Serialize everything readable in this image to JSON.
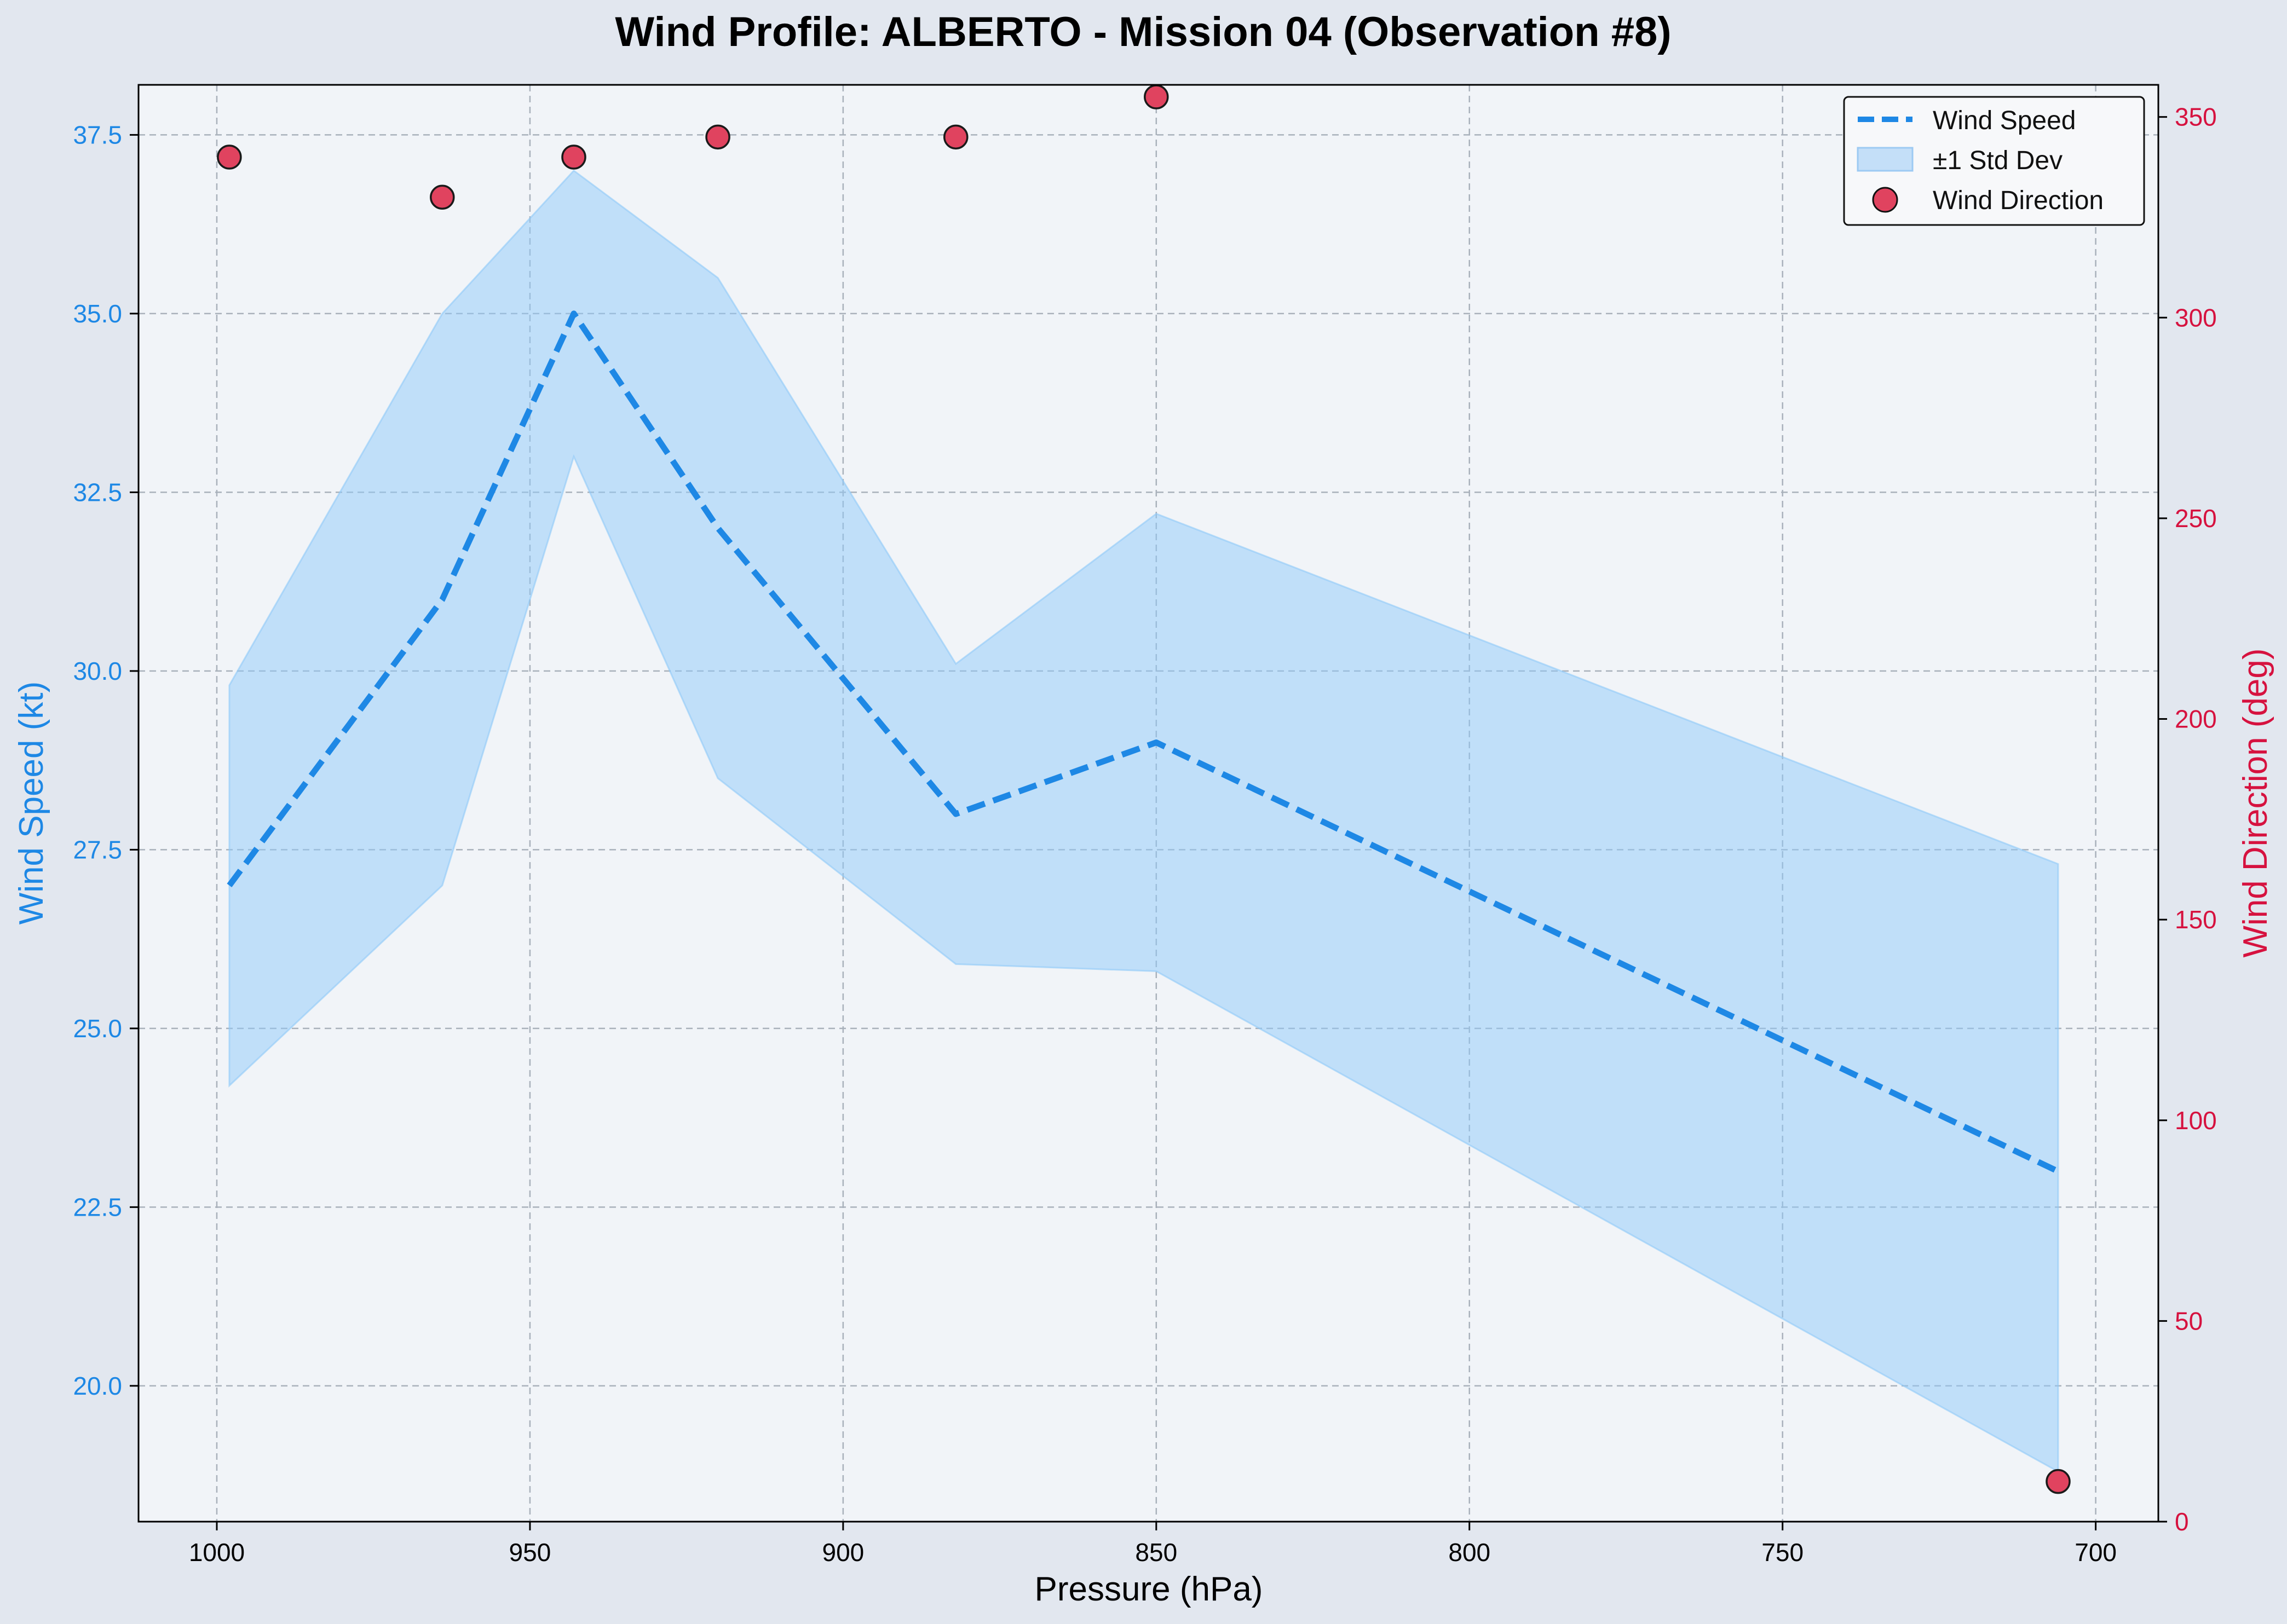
{
  "chart_data": {
    "type": "line",
    "title": "Wind Profile: ALBERTO - Mission 04 (Observation #8)",
    "xlabel": "Pressure (hPa)",
    "ylabel": "Wind Speed (kt)",
    "y2label": "Wind Direction (deg)",
    "x_inverted": true,
    "xlim": [
      1012.5,
      690
    ],
    "ylim": [
      18.1,
      38.2
    ],
    "y2lim": [
      0,
      358
    ],
    "xticks": [
      1000,
      950,
      900,
      850,
      800,
      750,
      700
    ],
    "yticks": [
      20.0,
      22.5,
      25.0,
      27.5,
      30.0,
      32.5,
      35.0,
      37.5
    ],
    "y2ticks": [
      0,
      50,
      100,
      150,
      200,
      250,
      300,
      350
    ],
    "grid": true,
    "legend_position": "top-right",
    "x": [
      998,
      964,
      943,
      920,
      882,
      850,
      706
    ],
    "series": [
      {
        "name": "Wind Speed",
        "axis": "left",
        "style": "dashed line",
        "color": "#1e88e5",
        "values": [
          27.0,
          31.0,
          35.0,
          32.0,
          28.0,
          29.0,
          23.0
        ]
      },
      {
        "name": "±1 Std Dev",
        "axis": "left",
        "style": "band",
        "color": "#90caf9",
        "upper": [
          29.8,
          35.0,
          37.0,
          35.5,
          30.1,
          32.2,
          27.3
        ],
        "lower": [
          24.2,
          27.0,
          33.0,
          28.5,
          25.9,
          25.8,
          18.8
        ]
      },
      {
        "name": "Wind Direction",
        "axis": "right",
        "style": "scatter",
        "color": "#e0435f",
        "values": [
          340,
          330,
          340,
          345,
          345,
          355,
          10
        ]
      }
    ]
  },
  "colors": {
    "page_background": "#e2e7ef",
    "plot_background": "#f1f4f8",
    "left_axis": "#1e88e5",
    "right_axis": "#d6123f"
  }
}
